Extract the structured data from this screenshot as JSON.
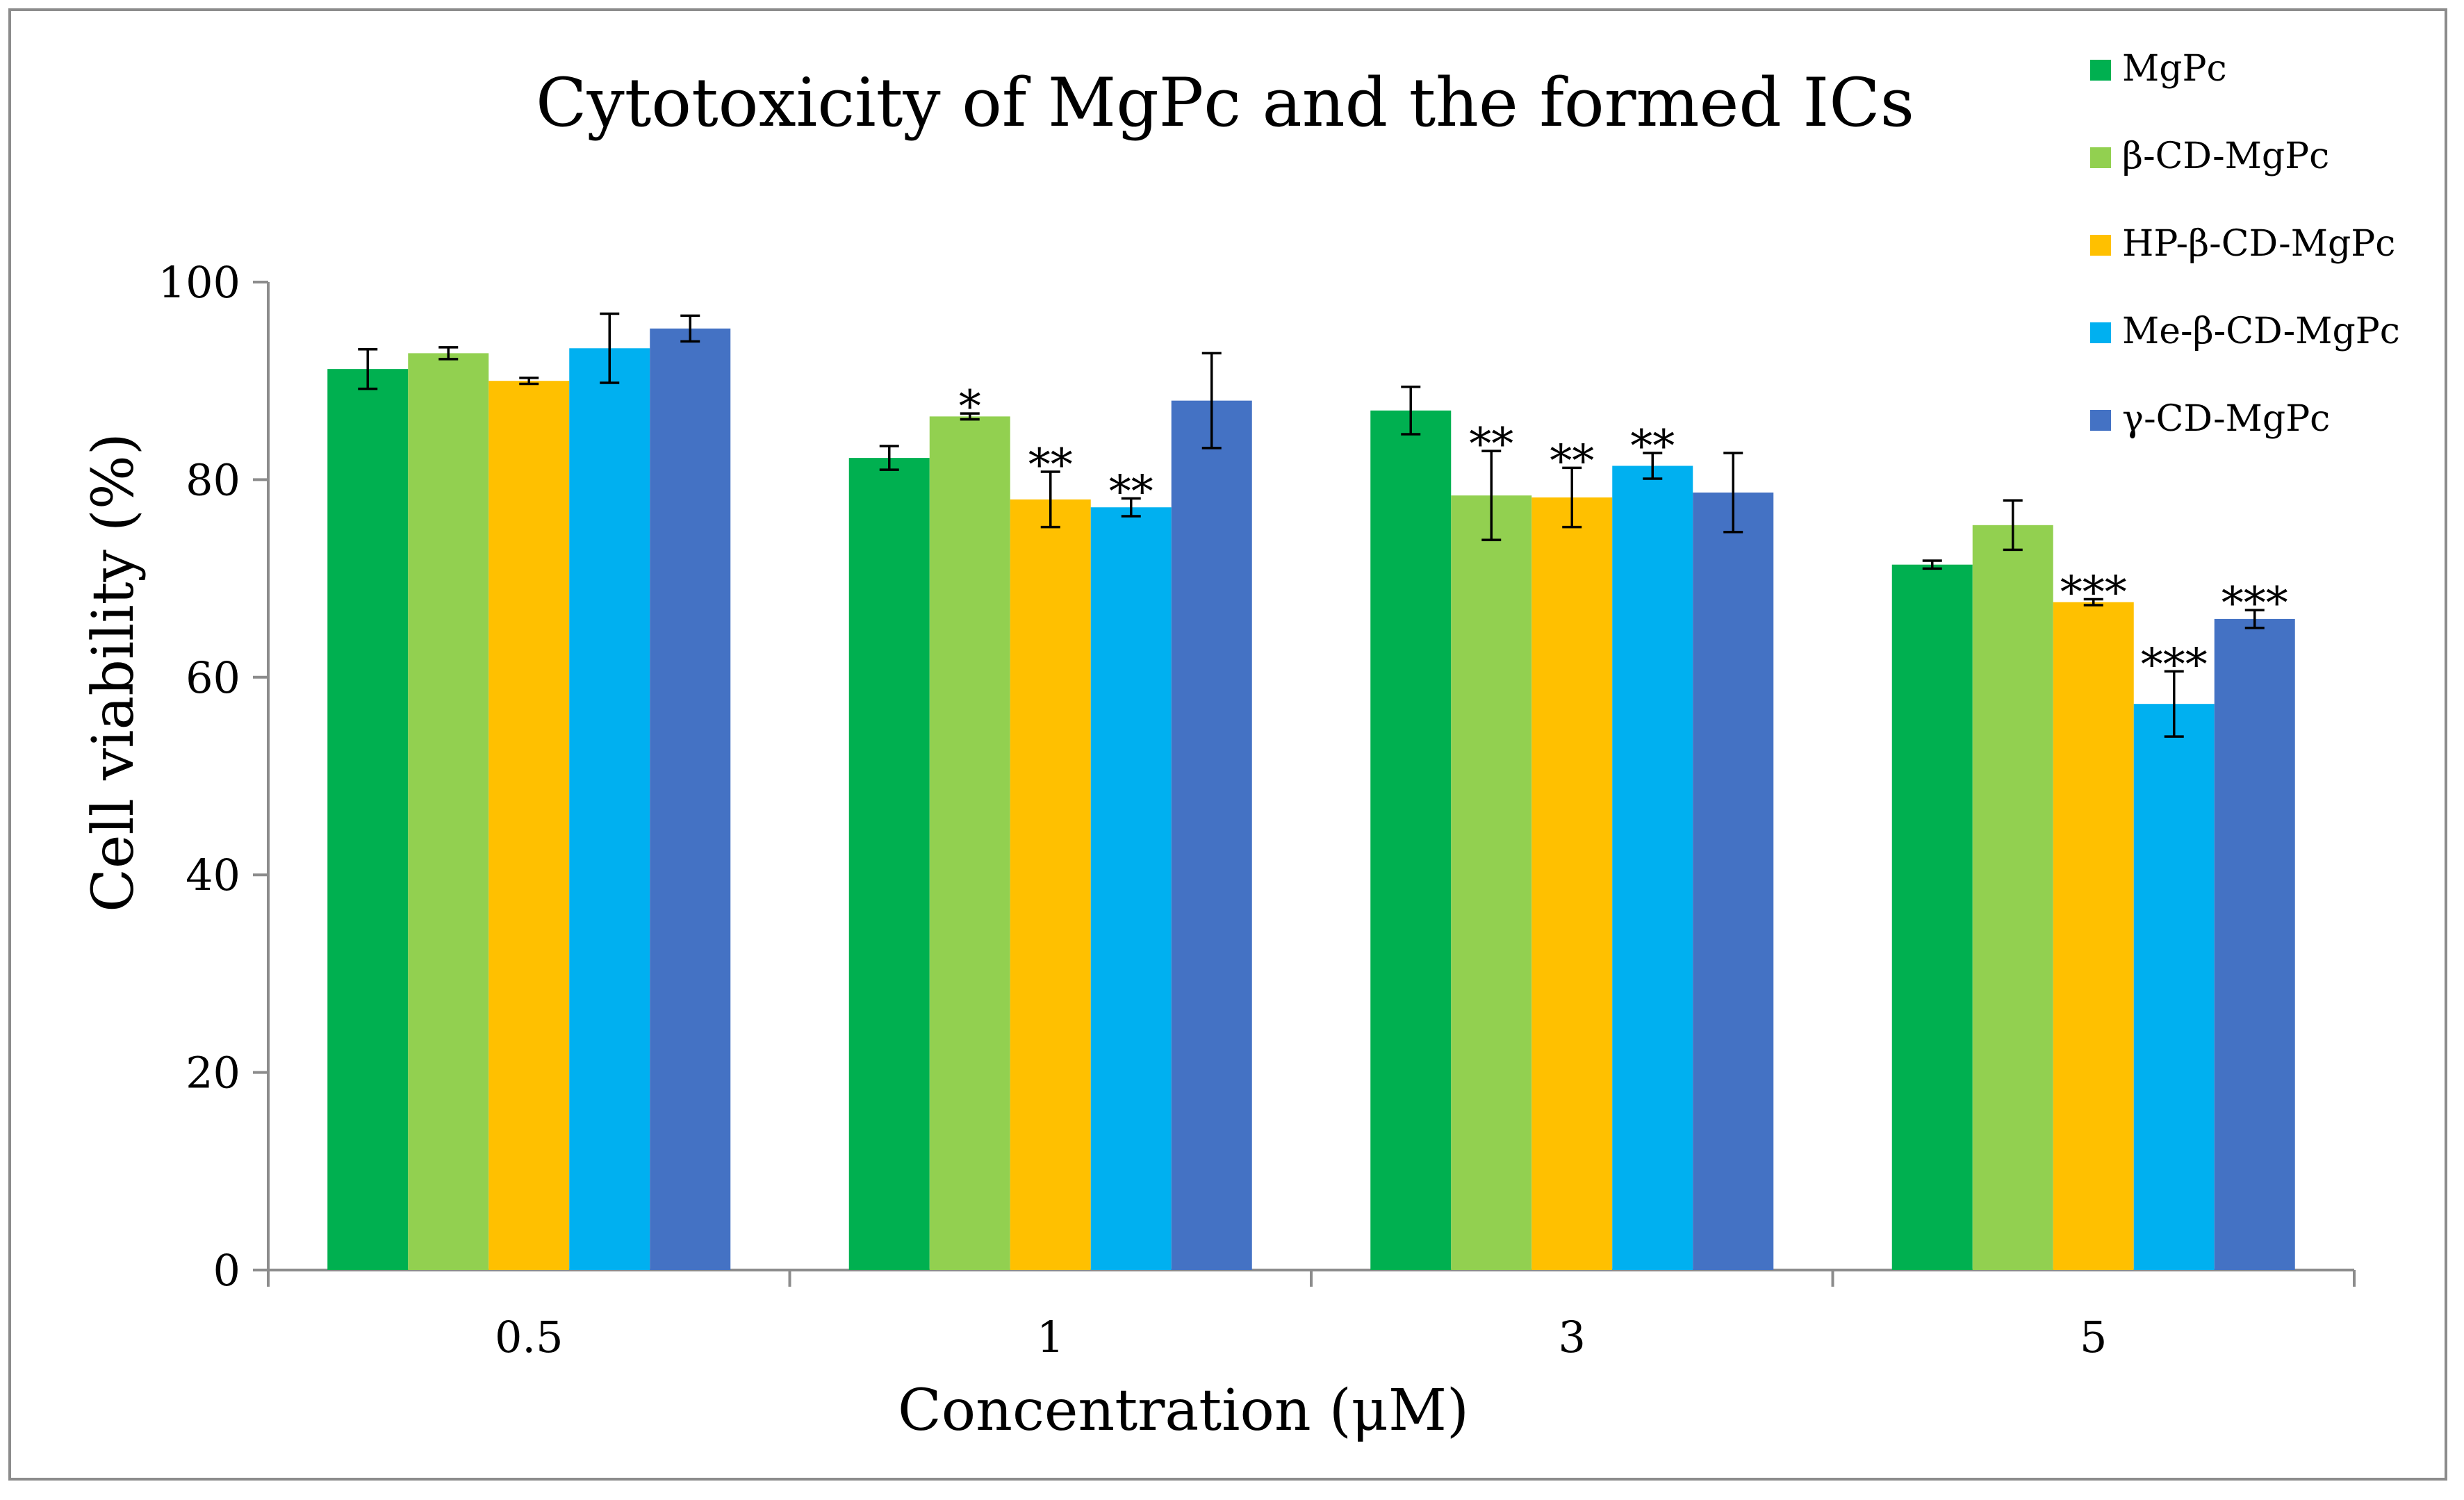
{
  "chart_data": {
    "type": "bar",
    "title": "Cytotoxicity of MgPc and the formed ICs",
    "xlabel": "Concentration (μM)",
    "ylabel": "Cell viability (%)",
    "ylim": [
      0,
      100
    ],
    "yticks": [
      0,
      20,
      40,
      60,
      80,
      100
    ],
    "grid": false,
    "legend_position": "top-right",
    "categories": [
      "0.5",
      "1",
      "3",
      "5"
    ],
    "series": [
      {
        "name": "MgPc",
        "color": "#00b050",
        "values": [
          91.2,
          82.2,
          87.0,
          71.4
        ],
        "errors": [
          2.0,
          1.2,
          2.4,
          0.4
        ],
        "significance": [
          "",
          "",
          "",
          ""
        ]
      },
      {
        "name": "β-CD-MgPc",
        "color": "#92d050",
        "values": [
          92.8,
          86.4,
          78.4,
          75.4
        ],
        "errors": [
          0.6,
          0.3,
          4.5,
          2.5
        ],
        "significance": [
          "",
          "*",
          "**",
          ""
        ]
      },
      {
        "name": "HP-β-CD-MgPc",
        "color": "#ffc000",
        "values": [
          90.0,
          78.0,
          78.2,
          67.6
        ],
        "errors": [
          0.3,
          2.8,
          3.0,
          0.3
        ],
        "significance": [
          "",
          "**",
          "**",
          "***"
        ]
      },
      {
        "name": "Me-β-CD-MgPc",
        "color": "#00b0f0",
        "values": [
          93.3,
          77.2,
          81.4,
          57.3
        ],
        "errors": [
          3.5,
          0.9,
          1.3,
          3.3
        ],
        "significance": [
          "",
          "**",
          "**",
          "***"
        ]
      },
      {
        "name": "γ-CD-MgPc",
        "color": "#4472c4",
        "values": [
          95.3,
          88.0,
          78.7,
          65.9
        ],
        "errors": [
          1.3,
          4.8,
          4.0,
          0.9
        ],
        "significance": [
          "",
          "",
          "",
          "***"
        ]
      }
    ]
  }
}
